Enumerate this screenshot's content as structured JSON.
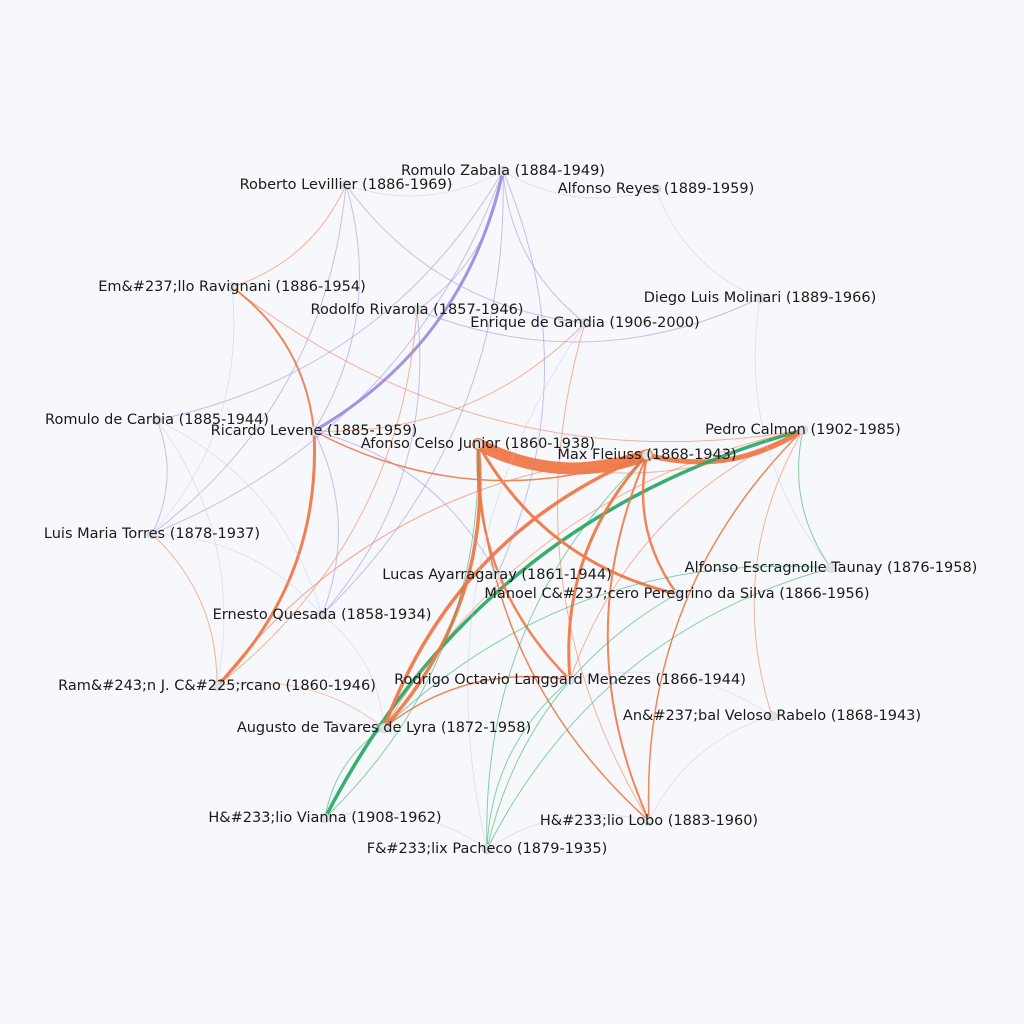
{
  "colors": {
    "argentina": "#9a90e0",
    "brazil": "#f07848",
    "cross": "#f07848",
    "green": "#2aaa66",
    "faint": "#c9c7e8"
  },
  "nodes": [
    {
      "id": "zabala",
      "label": "Romulo Zabala (1884-1949)",
      "group": "argentina"
    },
    {
      "id": "levillier",
      "label": "Roberto Levillier (1886-1969)",
      "group": "argentina"
    },
    {
      "id": "reyes",
      "label": "Alfonso Reyes (1889-1959)",
      "group": "other"
    },
    {
      "id": "ravignani",
      "label": "Em&#237;llo Ravignani (1886-1954)",
      "group": "argentina"
    },
    {
      "id": "molinari",
      "label": "Diego Luis Molinari (1889-1966)",
      "group": "argentina"
    },
    {
      "id": "rivarola",
      "label": "Rodolfo Rivarola (1857-1946)",
      "group": "argentina"
    },
    {
      "id": "gandia",
      "label": "Enrique de Gandia (1906-2000)",
      "group": "argentina"
    },
    {
      "id": "carbia",
      "label": "Romulo de Carbia (1885-1944)",
      "group": "argentina"
    },
    {
      "id": "levene",
      "label": "Ricardo Levene (1885-1959)",
      "group": "argentina"
    },
    {
      "id": "celso",
      "label": "Afonso Celso Junior (1860-1938)",
      "group": "brazil"
    },
    {
      "id": "calmon",
      "label": "Pedro Calmon (1902-1985)",
      "group": "brazil"
    },
    {
      "id": "fleiuss",
      "label": "Max Fleiuss (1868-1943)",
      "group": "brazil"
    },
    {
      "id": "torres",
      "label": "Luis Maria Torres (1878-1937)",
      "group": "argentina"
    },
    {
      "id": "ayarragaray",
      "label": "Lucas Ayarragaray (1861-1944)",
      "group": "argentina"
    },
    {
      "id": "taunay",
      "label": "Alfonso Escragnolle Taunay (1876-1958)",
      "group": "brazil"
    },
    {
      "id": "peregrino",
      "label": "Manoel C&#237;cero Peregrino da Silva (1866-1956)",
      "group": "brazil"
    },
    {
      "id": "quesada",
      "label": "Ernesto Quesada (1858-1934)",
      "group": "argentina"
    },
    {
      "id": "carcano",
      "label": "Ram&#243;n J. C&#225;rcano (1860-1946)",
      "group": "argentina"
    },
    {
      "id": "octavio",
      "label": "Rodrigo Octavio Langgard Menezes (1866-1944)",
      "group": "brazil"
    },
    {
      "id": "rabelo",
      "label": "An&#237;bal Veloso Rabelo (1868-1943)",
      "group": "brazil"
    },
    {
      "id": "lyra",
      "label": "Augusto de Tavares de Lyra (1872-1958)",
      "group": "brazil"
    },
    {
      "id": "vianna",
      "label": "H&#233;lio Vianna (1908-1962)",
      "group": "brazil"
    },
    {
      "id": "lobo",
      "label": "H&#233;lio Lobo (1883-1960)",
      "group": "brazil"
    },
    {
      "id": "pacheco",
      "label": "F&#233;lix Pacheco (1879-1935)",
      "group": "brazil"
    }
  ],
  "edges": [
    {
      "s": "celso",
      "t": "fleiuss",
      "w": 12,
      "c": "brazil"
    },
    {
      "s": "fleiuss",
      "t": "calmon",
      "w": 5,
      "c": "brazil"
    },
    {
      "s": "zabala",
      "t": "levene",
      "w": 3,
      "c": "argentina"
    },
    {
      "s": "calmon",
      "t": "vianna",
      "w": 3.5,
      "c": "green"
    },
    {
      "s": "celso",
      "t": "lyra",
      "w": 3.5,
      "c": "brazil"
    },
    {
      "s": "fleiuss",
      "t": "lyra",
      "w": 3.5,
      "c": "brazil"
    },
    {
      "s": "levene",
      "t": "carcano",
      "w": 3,
      "c": "brazil"
    },
    {
      "s": "fleiuss",
      "t": "octavio",
      "w": 3,
      "c": "brazil"
    },
    {
      "s": "celso",
      "t": "peregrino",
      "w": 3,
      "c": "brazil"
    },
    {
      "s": "celso",
      "t": "octavio",
      "w": 2.5,
      "c": "brazil"
    },
    {
      "s": "fleiuss",
      "t": "peregrino",
      "w": 2.5,
      "c": "brazil"
    },
    {
      "s": "ravignani",
      "t": "levene",
      "w": 2,
      "c": "brazil"
    },
    {
      "s": "fleiuss",
      "t": "lobo",
      "w": 2,
      "c": "brazil"
    },
    {
      "s": "calmon",
      "t": "lobo",
      "w": 1.5,
      "c": "brazil"
    },
    {
      "s": "levene",
      "t": "fleiuss",
      "w": 1.5,
      "c": "brazil"
    },
    {
      "s": "octavio",
      "t": "lyra",
      "w": 1.5,
      "c": "brazil"
    },
    {
      "s": "celso",
      "t": "lobo",
      "w": 1.5,
      "c": "brazil"
    },
    {
      "s": "fleiuss",
      "t": "carcano",
      "w": 1.2,
      "c": "brazil"
    },
    {
      "s": "levene",
      "t": "gandia",
      "w": 1,
      "c": "brazil"
    },
    {
      "s": "levillier",
      "t": "ravignani",
      "w": 1,
      "c": "brazil"
    },
    {
      "s": "lyra",
      "t": "vianna",
      "w": 1,
      "c": "green"
    },
    {
      "s": "calmon",
      "t": "taunay",
      "w": 1,
      "c": "green"
    },
    {
      "s": "octavio",
      "t": "pacheco",
      "w": 1,
      "c": "green"
    },
    {
      "s": "peregrino",
      "t": "pacheco",
      "w": 1,
      "c": "green"
    },
    {
      "s": "zabala",
      "t": "quesada",
      "w": 1,
      "c": "argentina"
    },
    {
      "s": "zabala",
      "t": "torres",
      "w": 1,
      "c": "argentina"
    },
    {
      "s": "zabala",
      "t": "rivarola",
      "w": 1,
      "c": "argentina"
    },
    {
      "s": "zabala",
      "t": "gandia",
      "w": 1,
      "c": "argentina"
    },
    {
      "s": "zabala",
      "t": "ayarragaray",
      "w": 1,
      "c": "argentina"
    },
    {
      "s": "levillier",
      "t": "torres",
      "w": 1,
      "c": "argentina"
    },
    {
      "s": "levillier",
      "t": "levene",
      "w": 1,
      "c": "argentina"
    },
    {
      "s": "levillier",
      "t": "gandia",
      "w": 1,
      "c": "argentina"
    },
    {
      "s": "rivarola",
      "t": "quesada",
      "w": 1,
      "c": "argentina"
    },
    {
      "s": "rivarola",
      "t": "carcano",
      "w": 1,
      "c": "brazil"
    },
    {
      "s": "levene",
      "t": "ayarragaray",
      "w": 1,
      "c": "argentina"
    },
    {
      "s": "levene",
      "t": "quesada",
      "w": 1,
      "c": "argentina"
    },
    {
      "s": "carbia",
      "t": "torres",
      "w": 1,
      "c": "argentina"
    },
    {
      "s": "molinari",
      "t": "rivarola",
      "w": 1,
      "c": "argentina"
    },
    {
      "s": "zabala",
      "t": "carbia",
      "w": 1,
      "c": "argentina"
    },
    {
      "s": "torres",
      "t": "carcano",
      "w": 1,
      "c": "brazil"
    },
    {
      "s": "celso",
      "t": "calmon",
      "w": 1,
      "c": "brazil"
    },
    {
      "s": "calmon",
      "t": "octavio",
      "w": 1,
      "c": "brazil"
    },
    {
      "s": "calmon",
      "t": "rabelo",
      "w": 1,
      "c": "brazil"
    },
    {
      "s": "calmon",
      "t": "lyra",
      "w": 1,
      "c": "brazil"
    },
    {
      "s": "gandia",
      "t": "lobo",
      "w": 1,
      "c": "brazil"
    },
    {
      "s": "ravignani",
      "t": "calmon",
      "w": 1,
      "c": "brazil"
    },
    {
      "s": "celso",
      "t": "vianna",
      "w": 1,
      "c": "green"
    },
    {
      "s": "fleiuss",
      "t": "pacheco",
      "w": 1,
      "c": "green"
    },
    {
      "s": "taunay",
      "t": "pacheco",
      "w": 1,
      "c": "green"
    },
    {
      "s": "taunay",
      "t": "lyra",
      "w": 1,
      "c": "green"
    },
    {
      "s": "zabala",
      "t": "reyes",
      "w": 0.8,
      "c": "faint"
    },
    {
      "s": "reyes",
      "t": "molinari",
      "w": 0.8,
      "c": "faint"
    },
    {
      "s": "molinari",
      "t": "taunay",
      "w": 0.8,
      "c": "faint"
    },
    {
      "s": "carbia",
      "t": "quesada",
      "w": 0.8,
      "c": "faint"
    },
    {
      "s": "ravignani",
      "t": "torres",
      "w": 0.8,
      "c": "faint"
    },
    {
      "s": "carbia",
      "t": "carcano",
      "w": 0.8,
      "c": "faint"
    },
    {
      "s": "torres",
      "t": "quesada",
      "w": 0.8,
      "c": "faint"
    },
    {
      "s": "levillier",
      "t": "zabala",
      "w": 0.8,
      "c": "faint"
    },
    {
      "s": "gandia",
      "t": "pacheco",
      "w": 0.8,
      "c": "faint"
    },
    {
      "s": "quesada",
      "t": "lyra",
      "w": 0.8,
      "c": "faint"
    },
    {
      "s": "carcano",
      "t": "lyra",
      "w": 0.8,
      "c": "brazil"
    },
    {
      "s": "octavio",
      "t": "rabelo",
      "w": 0.8,
      "c": "faint"
    },
    {
      "s": "rabelo",
      "t": "lobo",
      "w": 0.8,
      "c": "faint"
    },
    {
      "s": "vianna",
      "t": "pacheco",
      "w": 0.8,
      "c": "faint"
    },
    {
      "s": "pacheco",
      "t": "lobo",
      "w": 0.8,
      "c": "faint"
    }
  ]
}
